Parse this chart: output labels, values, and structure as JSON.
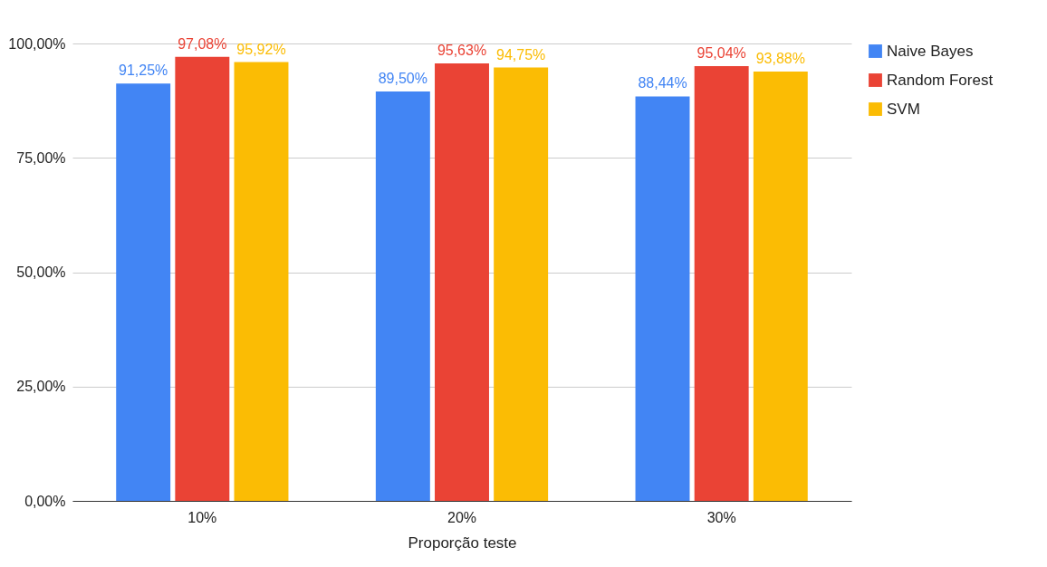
{
  "chart_data": {
    "type": "bar",
    "xlabel": "Proporção teste",
    "categories": [
      "10%",
      "20%",
      "30%"
    ],
    "series": [
      {
        "name": "Naive Bayes",
        "color": "#4285f4",
        "values": [
          91.25,
          89.5,
          88.44
        ],
        "value_labels": [
          "91,25%",
          "89,50%",
          "88,44%"
        ]
      },
      {
        "name": "Random Forest",
        "color": "#ea4335",
        "values": [
          97.08,
          95.63,
          95.04
        ],
        "value_labels": [
          "97,08%",
          "95,63%",
          "95,04%"
        ]
      },
      {
        "name": "SVM",
        "color": "#fbbc04",
        "values": [
          95.92,
          94.75,
          93.88
        ],
        "value_labels": [
          "95,92%",
          "94,75%",
          "93,88%"
        ]
      }
    ],
    "ylim": [
      0,
      100
    ],
    "yticks": [
      {
        "value": 0,
        "label": "0,00%"
      },
      {
        "value": 25,
        "label": "25,00%"
      },
      {
        "value": 50,
        "label": "50,00%"
      },
      {
        "value": 75,
        "label": "75,00%"
      },
      {
        "value": 100,
        "label": "100,00%"
      }
    ],
    "grid": "y",
    "legend": "right"
  }
}
